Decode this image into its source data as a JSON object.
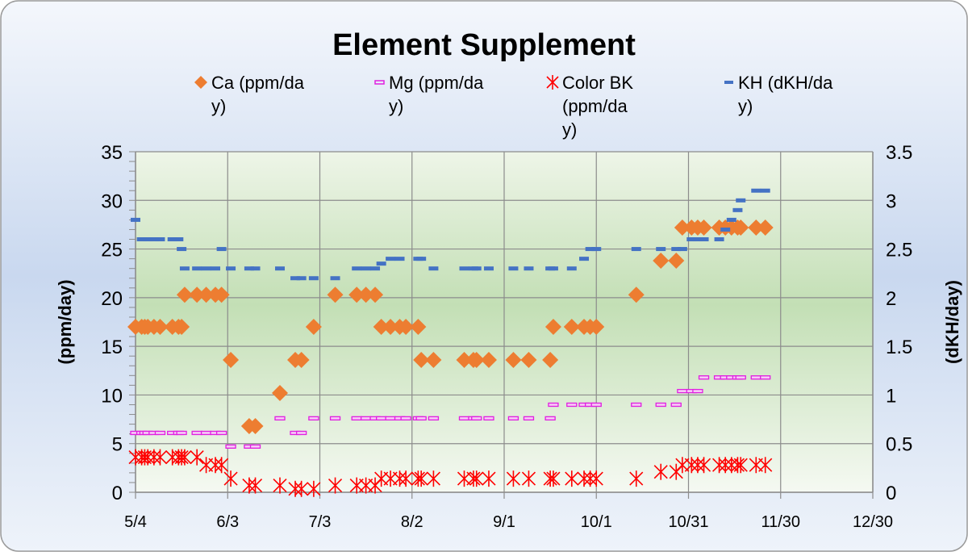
{
  "chart_data": {
    "type": "scatter",
    "title": "Element Supplement",
    "ylabel": "(ppm/day)",
    "y2label": "(dKH/day)",
    "xlabel": "",
    "x_ticks": [
      "5/4",
      "6/3",
      "7/3",
      "8/2",
      "9/1",
      "10/1",
      "10/31",
      "11/30",
      "12/30"
    ],
    "xlim": [
      "5/4",
      "12/30"
    ],
    "ylim": [
      0,
      35
    ],
    "y_ticks": [
      "0",
      "5",
      "10",
      "15",
      "20",
      "25",
      "30",
      "35"
    ],
    "y2lim": [
      0,
      3.5
    ],
    "y2_ticks": [
      "0",
      "0.5",
      "1",
      "1.5",
      "2",
      "2.5",
      "3",
      "3.5"
    ],
    "grid": true,
    "legend_position": "top",
    "series": [
      {
        "name": "Ca (ppm/day)",
        "marker": "diamond",
        "color": "#ED7D31",
        "axis": "left",
        "points": [
          [
            "5/4",
            17
          ],
          [
            "5/6",
            17
          ],
          [
            "5/7",
            17
          ],
          [
            "5/8",
            17
          ],
          [
            "5/10",
            17
          ],
          [
            "5/12",
            17
          ],
          [
            "5/16",
            17
          ],
          [
            "5/18",
            17
          ],
          [
            "5/19",
            17
          ],
          [
            "5/20",
            20.3
          ],
          [
            "5/24",
            20.3
          ],
          [
            "5/27",
            20.3
          ],
          [
            "5/30",
            20.3
          ],
          [
            "6/1",
            20.3
          ],
          [
            "6/4",
            13.6
          ],
          [
            "6/10",
            6.8
          ],
          [
            "6/12",
            6.8
          ],
          [
            "6/20",
            10.2
          ],
          [
            "6/25",
            13.6
          ],
          [
            "6/27",
            13.6
          ],
          [
            "7/1",
            17
          ],
          [
            "7/8",
            20.3
          ],
          [
            "7/15",
            20.3
          ],
          [
            "7/18",
            20.3
          ],
          [
            "7/21",
            20.3
          ],
          [
            "7/23",
            17
          ],
          [
            "7/26",
            17
          ],
          [
            "7/29",
            17
          ],
          [
            "7/31",
            17
          ],
          [
            "8/4",
            17
          ],
          [
            "8/5",
            13.6
          ],
          [
            "8/9",
            13.6
          ],
          [
            "8/19",
            13.6
          ],
          [
            "8/22",
            13.6
          ],
          [
            "8/23",
            13.6
          ],
          [
            "8/27",
            13.6
          ],
          [
            "9/4",
            13.6
          ],
          [
            "9/9",
            13.6
          ],
          [
            "9/16",
            13.6
          ],
          [
            "9/17",
            17
          ],
          [
            "9/23",
            17
          ],
          [
            "9/27",
            17
          ],
          [
            "9/29",
            17
          ],
          [
            "10/1",
            17
          ],
          [
            "10/14",
            20.3
          ],
          [
            "10/22",
            23.8
          ],
          [
            "10/27",
            23.8
          ],
          [
            "10/29",
            27.2
          ],
          [
            "11/1",
            27.2
          ],
          [
            "11/3",
            27.2
          ],
          [
            "11/5",
            27.2
          ],
          [
            "11/10",
            27.2
          ],
          [
            "11/12",
            27.2
          ],
          [
            "11/14",
            27.2
          ],
          [
            "11/16",
            27.2
          ],
          [
            "11/17",
            27.2
          ],
          [
            "11/22",
            27.2
          ],
          [
            "11/25",
            27.2
          ]
        ]
      },
      {
        "name": "Mg (ppm/day)",
        "marker": "dash-outline",
        "color": "#E020E0",
        "axis": "left",
        "points": [
          [
            "5/4",
            6.1
          ],
          [
            "5/6",
            6.1
          ],
          [
            "5/7",
            6.1
          ],
          [
            "5/8",
            6.1
          ],
          [
            "5/10",
            6.1
          ],
          [
            "5/12",
            6.1
          ],
          [
            "5/16",
            6.1
          ],
          [
            "5/18",
            6.1
          ],
          [
            "5/19",
            6.1
          ],
          [
            "5/24",
            6.1
          ],
          [
            "5/27",
            6.1
          ],
          [
            "5/30",
            6.1
          ],
          [
            "6/1",
            6.1
          ],
          [
            "6/4",
            4.7
          ],
          [
            "6/10",
            4.7
          ],
          [
            "6/12",
            4.7
          ],
          [
            "6/20",
            7.6
          ],
          [
            "6/25",
            6.1
          ],
          [
            "6/27",
            6.1
          ],
          [
            "7/1",
            7.6
          ],
          [
            "7/8",
            7.6
          ],
          [
            "7/15",
            7.6
          ],
          [
            "7/18",
            7.6
          ],
          [
            "7/21",
            7.6
          ],
          [
            "7/23",
            7.6
          ],
          [
            "7/26",
            7.6
          ],
          [
            "7/29",
            7.6
          ],
          [
            "7/31",
            7.6
          ],
          [
            "8/4",
            7.6
          ],
          [
            "8/5",
            7.6
          ],
          [
            "8/9",
            7.6
          ],
          [
            "8/19",
            7.6
          ],
          [
            "8/22",
            7.6
          ],
          [
            "8/23",
            7.6
          ],
          [
            "8/27",
            7.6
          ],
          [
            "9/4",
            7.6
          ],
          [
            "9/9",
            7.6
          ],
          [
            "9/16",
            7.6
          ],
          [
            "9/17",
            9
          ],
          [
            "9/23",
            9
          ],
          [
            "9/27",
            9
          ],
          [
            "9/29",
            9
          ],
          [
            "10/1",
            9
          ],
          [
            "10/14",
            9
          ],
          [
            "10/22",
            9
          ],
          [
            "10/27",
            9
          ],
          [
            "10/29",
            10.4
          ],
          [
            "11/1",
            10.4
          ],
          [
            "11/3",
            10.4
          ],
          [
            "11/5",
            11.8
          ],
          [
            "11/10",
            11.8
          ],
          [
            "11/12",
            11.8
          ],
          [
            "11/14",
            11.8
          ],
          [
            "11/16",
            11.8
          ],
          [
            "11/17",
            11.8
          ],
          [
            "11/22",
            11.8
          ],
          [
            "11/25",
            11.8
          ]
        ]
      },
      {
        "name": "Color BK (ppm/day)",
        "marker": "asterisk",
        "color": "#FF0000",
        "axis": "left",
        "points": [
          [
            "5/4",
            3.6
          ],
          [
            "5/6",
            3.6
          ],
          [
            "5/7",
            3.6
          ],
          [
            "5/8",
            3.6
          ],
          [
            "5/10",
            3.6
          ],
          [
            "5/12",
            3.6
          ],
          [
            "5/16",
            3.6
          ],
          [
            "5/18",
            3.6
          ],
          [
            "5/19",
            3.6
          ],
          [
            "5/20",
            3.6
          ],
          [
            "5/24",
            3.6
          ],
          [
            "5/27",
            2.8
          ],
          [
            "5/30",
            2.8
          ],
          [
            "6/1",
            2.8
          ],
          [
            "6/4",
            1.4
          ],
          [
            "6/10",
            0.7
          ],
          [
            "6/12",
            0.7
          ],
          [
            "6/20",
            0.7
          ],
          [
            "6/25",
            0.35
          ],
          [
            "6/27",
            0.35
          ],
          [
            "7/1",
            0.35
          ],
          [
            "7/8",
            0.7
          ],
          [
            "7/15",
            0.7
          ],
          [
            "7/18",
            0.7
          ],
          [
            "7/21",
            0.7
          ],
          [
            "7/23",
            1.4
          ],
          [
            "7/26",
            1.4
          ],
          [
            "7/29",
            1.4
          ],
          [
            "7/31",
            1.4
          ],
          [
            "8/4",
            1.4
          ],
          [
            "8/5",
            1.4
          ],
          [
            "8/9",
            1.4
          ],
          [
            "8/19",
            1.4
          ],
          [
            "8/22",
            1.4
          ],
          [
            "8/23",
            1.4
          ],
          [
            "8/27",
            1.4
          ],
          [
            "9/4",
            1.4
          ],
          [
            "9/9",
            1.4
          ],
          [
            "9/16",
            1.4
          ],
          [
            "9/17",
            1.4
          ],
          [
            "9/23",
            1.4
          ],
          [
            "9/27",
            1.4
          ],
          [
            "9/29",
            1.4
          ],
          [
            "10/1",
            1.4
          ],
          [
            "10/14",
            1.4
          ],
          [
            "10/22",
            2.1
          ],
          [
            "10/27",
            2.1
          ],
          [
            "10/29",
            2.8
          ],
          [
            "11/1",
            2.8
          ],
          [
            "11/3",
            2.8
          ],
          [
            "11/5",
            2.8
          ],
          [
            "11/10",
            2.8
          ],
          [
            "11/12",
            2.8
          ],
          [
            "11/14",
            2.8
          ],
          [
            "11/16",
            2.8
          ],
          [
            "11/17",
            2.8
          ],
          [
            "11/22",
            2.8
          ],
          [
            "11/25",
            2.8
          ]
        ]
      },
      {
        "name": "KH (dKH/day)",
        "marker": "dash",
        "color": "#4472C4",
        "axis": "right",
        "points": [
          [
            "5/4",
            2.8
          ],
          [
            "5/6",
            2.6
          ],
          [
            "5/8",
            2.6
          ],
          [
            "5/10",
            2.6
          ],
          [
            "5/12",
            2.6
          ],
          [
            "5/16",
            2.6
          ],
          [
            "5/18",
            2.6
          ],
          [
            "5/19",
            2.5
          ],
          [
            "5/20",
            2.3
          ],
          [
            "5/24",
            2.3
          ],
          [
            "5/27",
            2.3
          ],
          [
            "5/30",
            2.3
          ],
          [
            "6/1",
            2.5
          ],
          [
            "6/4",
            2.3
          ],
          [
            "6/10",
            2.3
          ],
          [
            "6/12",
            2.3
          ],
          [
            "6/20",
            2.3
          ],
          [
            "6/25",
            2.2
          ],
          [
            "6/27",
            2.2
          ],
          [
            "7/1",
            2.2
          ],
          [
            "7/8",
            2.2
          ],
          [
            "7/15",
            2.3
          ],
          [
            "7/18",
            2.3
          ],
          [
            "7/21",
            2.3
          ],
          [
            "7/23",
            2.35
          ],
          [
            "7/26",
            2.4
          ],
          [
            "7/29",
            2.4
          ],
          [
            "8/4",
            2.4
          ],
          [
            "8/5",
            2.4
          ],
          [
            "8/9",
            2.3
          ],
          [
            "8/19",
            2.3
          ],
          [
            "8/22",
            2.3
          ],
          [
            "8/23",
            2.3
          ],
          [
            "8/27",
            2.3
          ],
          [
            "9/4",
            2.3
          ],
          [
            "9/9",
            2.3
          ],
          [
            "9/16",
            2.3
          ],
          [
            "9/17",
            2.3
          ],
          [
            "9/23",
            2.3
          ],
          [
            "9/27",
            2.4
          ],
          [
            "9/29",
            2.5
          ],
          [
            "10/1",
            2.5
          ],
          [
            "10/14",
            2.5
          ],
          [
            "10/22",
            2.5
          ],
          [
            "10/27",
            2.5
          ],
          [
            "10/29",
            2.5
          ],
          [
            "11/1",
            2.6
          ],
          [
            "11/3",
            2.6
          ],
          [
            "11/5",
            2.6
          ],
          [
            "11/10",
            2.6
          ],
          [
            "11/12",
            2.7
          ],
          [
            "11/14",
            2.8
          ],
          [
            "11/16",
            2.9
          ],
          [
            "11/17",
            3.0
          ],
          [
            "11/22",
            3.1
          ],
          [
            "11/25",
            3.1
          ]
        ]
      }
    ]
  }
}
